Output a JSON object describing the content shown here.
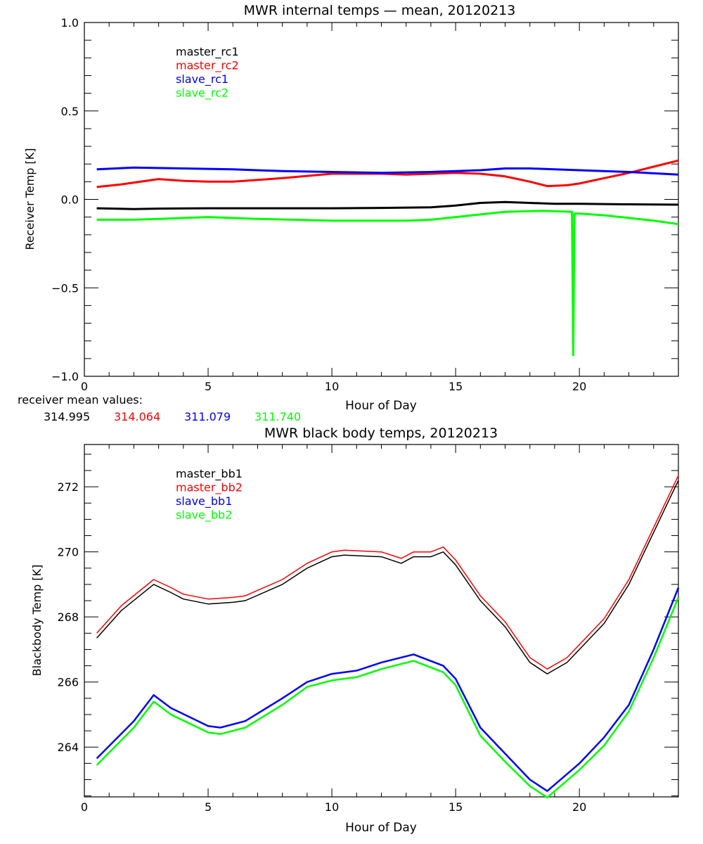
{
  "chart_data": [
    {
      "type": "line",
      "title": "MWR internal temps — mean, 20120213",
      "xlabel": "Hour of Day",
      "ylabel": "Receiver Temp [K]",
      "xlim": [
        0,
        24
      ],
      "ylim": [
        -1.0,
        1.0
      ],
      "xticks": [
        0,
        5,
        10,
        15,
        20
      ],
      "yticks": [
        -1.0,
        -0.5,
        0.0,
        0.5,
        1.0
      ],
      "ytick_labels": [
        "−1.0",
        "−0.5",
        "0.0",
        "0.5",
        "1.0"
      ],
      "legend_position": "top-left",
      "series": [
        {
          "name": "master_rc1",
          "color": "#000000",
          "x": [
            0.5,
            2,
            3,
            5,
            8,
            10,
            12,
            14,
            15,
            16,
            17,
            18,
            19,
            20,
            22,
            24
          ],
          "y": [
            -0.05,
            -0.055,
            -0.052,
            -0.05,
            -0.05,
            -0.05,
            -0.048,
            -0.045,
            -0.035,
            -0.02,
            -0.015,
            -0.02,
            -0.025,
            -0.025,
            -0.028,
            -0.03
          ]
        },
        {
          "name": "master_rc2",
          "color": "#ff0000",
          "x": [
            0.5,
            1.5,
            3,
            4,
            5,
            6,
            8,
            10,
            12,
            13,
            15,
            16,
            17,
            18,
            18.7,
            19.5,
            20,
            21,
            22,
            23,
            24
          ],
          "y": [
            0.07,
            0.085,
            0.115,
            0.105,
            0.1,
            0.1,
            0.12,
            0.145,
            0.145,
            0.14,
            0.15,
            0.145,
            0.13,
            0.1,
            0.075,
            0.08,
            0.09,
            0.12,
            0.15,
            0.185,
            0.22
          ]
        },
        {
          "name": "slave_rc1",
          "color": "#0000ff",
          "x": [
            0.5,
            2,
            4,
            6,
            8,
            10,
            12,
            14,
            16,
            17,
            18,
            19,
            20,
            22,
            24
          ],
          "y": [
            0.17,
            0.18,
            0.175,
            0.17,
            0.16,
            0.155,
            0.15,
            0.155,
            0.165,
            0.175,
            0.175,
            0.17,
            0.165,
            0.155,
            0.14
          ]
        },
        {
          "name": "slave_rc2",
          "color": "#00ff00",
          "x": [
            0.5,
            2,
            3,
            5,
            7,
            10,
            13,
            14,
            15,
            16,
            17,
            18.5,
            19.7,
            19.75,
            19.8,
            20,
            21,
            22,
            23,
            24
          ],
          "y": [
            -0.115,
            -0.115,
            -0.11,
            -0.1,
            -0.11,
            -0.12,
            -0.12,
            -0.115,
            -0.1,
            -0.085,
            -0.07,
            -0.065,
            -0.07,
            -0.88,
            -0.08,
            -0.08,
            -0.09,
            -0.105,
            -0.12,
            -0.14
          ]
        }
      ],
      "annotation_label": "receiver mean values:",
      "mean_values": [
        "314.995",
        "314.064",
        "311.079",
        "311.740"
      ]
    },
    {
      "type": "line",
      "title": "MWR black body temps, 20120213",
      "xlabel": "Hour of Day",
      "ylabel": "Blackbody Temp [K]",
      "xlim": [
        0,
        24
      ],
      "ylim": [
        262.47,
        273.3
      ],
      "xticks": [
        0,
        5,
        10,
        15,
        20
      ],
      "yticks": [
        264,
        266,
        268,
        270,
        272
      ],
      "legend_position": "top-left",
      "series": [
        {
          "name": "master_bb1",
          "color": "#000000",
          "x": [
            0.5,
            1.5,
            2.8,
            3.5,
            4,
            5,
            6,
            6.5,
            8,
            9,
            10,
            10.5,
            12,
            12.8,
            13.3,
            14,
            14.5,
            15,
            16,
            17,
            18,
            18.7,
            19.5,
            21,
            22,
            23,
            24
          ],
          "y": [
            267.35,
            268.2,
            269.0,
            268.75,
            268.55,
            268.4,
            268.45,
            268.5,
            269.0,
            269.5,
            269.85,
            269.9,
            269.85,
            269.65,
            269.85,
            269.85,
            270.0,
            269.6,
            268.5,
            267.7,
            266.6,
            266.25,
            266.6,
            267.8,
            269.0,
            270.6,
            272.2
          ]
        },
        {
          "name": "master_bb2",
          "color": "#ff0000",
          "x": [
            0.5,
            1.5,
            2.8,
            3.5,
            4,
            5,
            6,
            6.5,
            8,
            9,
            10,
            10.5,
            12,
            12.8,
            13.3,
            14,
            14.5,
            15,
            16,
            17,
            18,
            18.7,
            19.5,
            21,
            22,
            23,
            24
          ],
          "y": [
            267.5,
            268.35,
            269.15,
            268.9,
            268.7,
            268.55,
            268.6,
            268.65,
            269.15,
            269.65,
            270.0,
            270.05,
            270.0,
            269.8,
            270.0,
            270.0,
            270.15,
            269.75,
            268.65,
            267.85,
            266.75,
            266.4,
            266.75,
            267.95,
            269.15,
            270.75,
            272.35
          ]
        },
        {
          "name": "slave_bb1",
          "color": "#0000ff",
          "x": [
            0.5,
            2,
            2.8,
            3.5,
            5,
            5.5,
            6.5,
            8,
            9,
            10,
            11,
            12,
            13.3,
            14.5,
            15,
            16,
            17,
            18,
            18.7,
            20,
            21,
            22,
            23,
            24
          ],
          "y": [
            263.65,
            264.8,
            265.6,
            265.2,
            264.65,
            264.6,
            264.8,
            265.5,
            266.0,
            266.25,
            266.35,
            266.6,
            266.85,
            266.5,
            266.1,
            264.6,
            263.8,
            263.0,
            262.65,
            263.5,
            264.3,
            265.3,
            267.0,
            268.9
          ]
        },
        {
          "name": "slave_bb2",
          "color": "#00ff00",
          "x": [
            0.5,
            2,
            2.8,
            3.5,
            5,
            5.5,
            6.5,
            8,
            9,
            10,
            11,
            12,
            13.3,
            14.5,
            15,
            16,
            17,
            18,
            18.7,
            20,
            21,
            22,
            23,
            24
          ],
          "y": [
            263.45,
            264.6,
            265.4,
            265.0,
            264.45,
            264.4,
            264.6,
            265.3,
            265.85,
            266.05,
            266.15,
            266.4,
            266.65,
            266.3,
            265.9,
            264.35,
            263.55,
            262.8,
            262.45,
            263.3,
            264.05,
            265.1,
            266.75,
            268.6
          ]
        }
      ]
    }
  ]
}
